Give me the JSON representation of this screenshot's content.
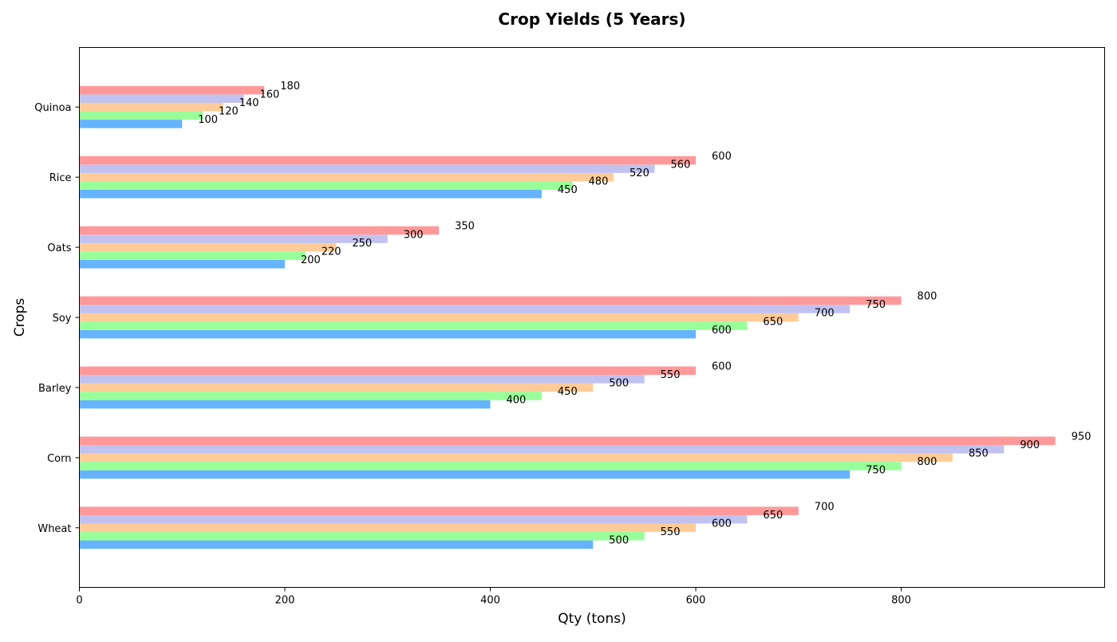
{
  "chart_data": {
    "type": "bar",
    "orientation": "horizontal",
    "title": "Crop Yields (5 Years)",
    "xlabel": "Qty (tons)",
    "ylabel": "Crops",
    "xlim": [
      0,
      998
    ],
    "xticks": [
      0,
      200,
      400,
      600,
      800
    ],
    "categories": [
      "Wheat",
      "Corn",
      "Barley",
      "Soy",
      "Oats",
      "Rice",
      "Quinoa"
    ],
    "series": [
      {
        "values": [
          500,
          750,
          400,
          600,
          200,
          450,
          100
        ],
        "color": "#66b3ff"
      },
      {
        "values": [
          550,
          800,
          450,
          650,
          220,
          480,
          120
        ],
        "color": "#99ff99"
      },
      {
        "values": [
          600,
          850,
          500,
          700,
          250,
          520,
          140
        ],
        "color": "#ffcc99"
      },
      {
        "values": [
          650,
          900,
          550,
          750,
          300,
          560,
          160
        ],
        "color": "#c2c2f0"
      },
      {
        "values": [
          700,
          950,
          600,
          800,
          350,
          600,
          180
        ],
        "color": "#ff9999"
      }
    ],
    "grid": false,
    "legend": false
  }
}
